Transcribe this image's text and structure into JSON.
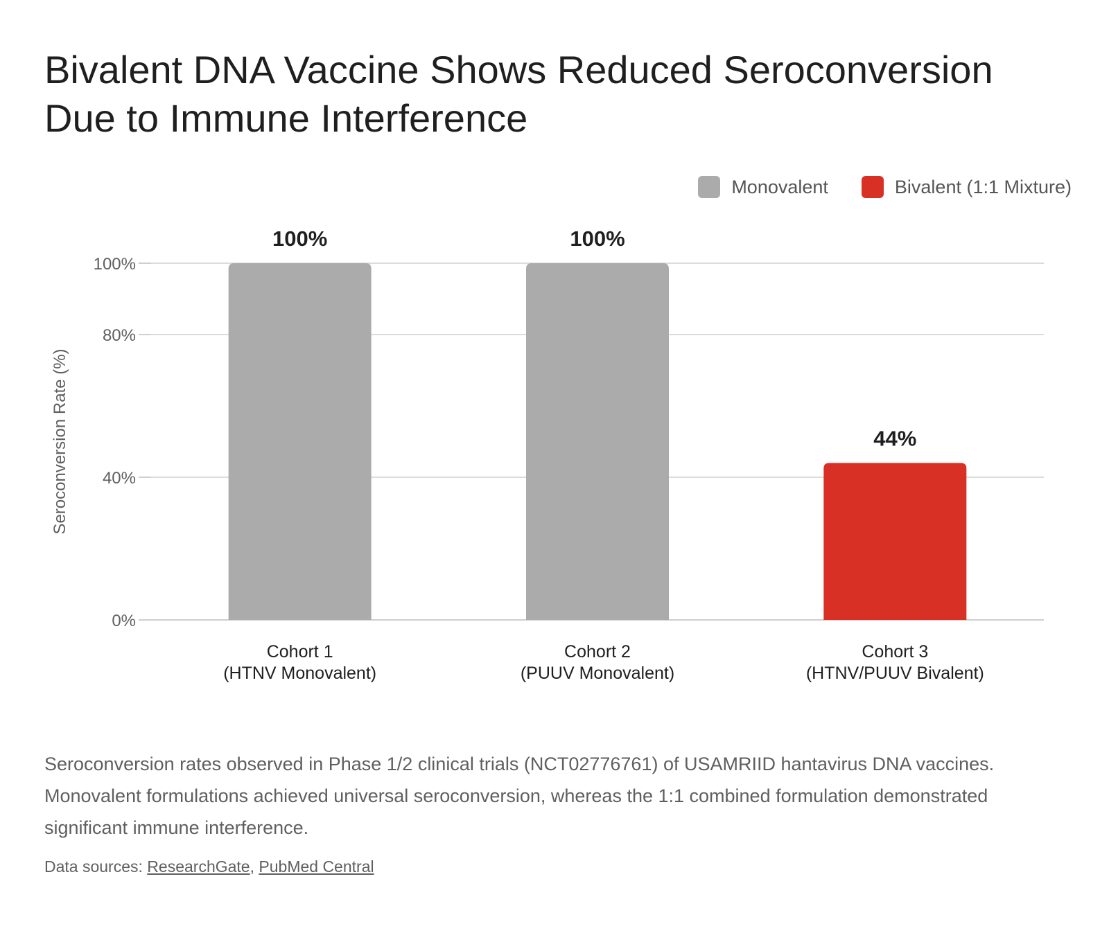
{
  "title": "Bivalent DNA Vaccine Shows Reduced Seroconversion Due to Immune Interference",
  "legend": {
    "items": [
      {
        "label": "Monovalent",
        "color": "#ababab"
      },
      {
        "label": "Bivalent (1:1 Mixture)",
        "color": "#d93025"
      }
    ]
  },
  "chart_data": {
    "type": "bar",
    "title": "Bivalent DNA Vaccine Shows Reduced Seroconversion Due to Immune Interference",
    "ylabel": "Seroconversion Rate (%)",
    "xlabel": "",
    "ylim": [
      0,
      100
    ],
    "yticks": [
      0,
      40,
      80,
      100
    ],
    "ytick_labels": [
      "0%",
      "40%",
      "80%",
      "100%"
    ],
    "grid": true,
    "legend_position": "top-right",
    "categories": [
      {
        "line1": "Cohort 1",
        "line2": "(HTNV Monovalent)"
      },
      {
        "line1": "Cohort 2",
        "line2": "(PUUV Monovalent)"
      },
      {
        "line1": "Cohort 3",
        "line2": "(HTNV/PUUV Bivalent)"
      }
    ],
    "values": [
      100,
      100,
      44
    ],
    "value_labels": [
      "100%",
      "100%",
      "44%"
    ],
    "bar_colors": [
      "#ababab",
      "#ababab",
      "#d93025"
    ],
    "series_of_bar": [
      "Monovalent",
      "Monovalent",
      "Bivalent (1:1 Mixture)"
    ]
  },
  "caption": "Seroconversion rates observed in Phase 1/2 clinical trials (NCT02776761) of USAMRIID hantavirus DNA vaccines. Monovalent formulations achieved universal seroconversion, whereas the 1:1 combined formulation demonstrated significant immune interference.",
  "sources": {
    "prefix": "Data sources: ",
    "separator": ", ",
    "links": [
      "ResearchGate",
      "PubMed Central"
    ]
  }
}
